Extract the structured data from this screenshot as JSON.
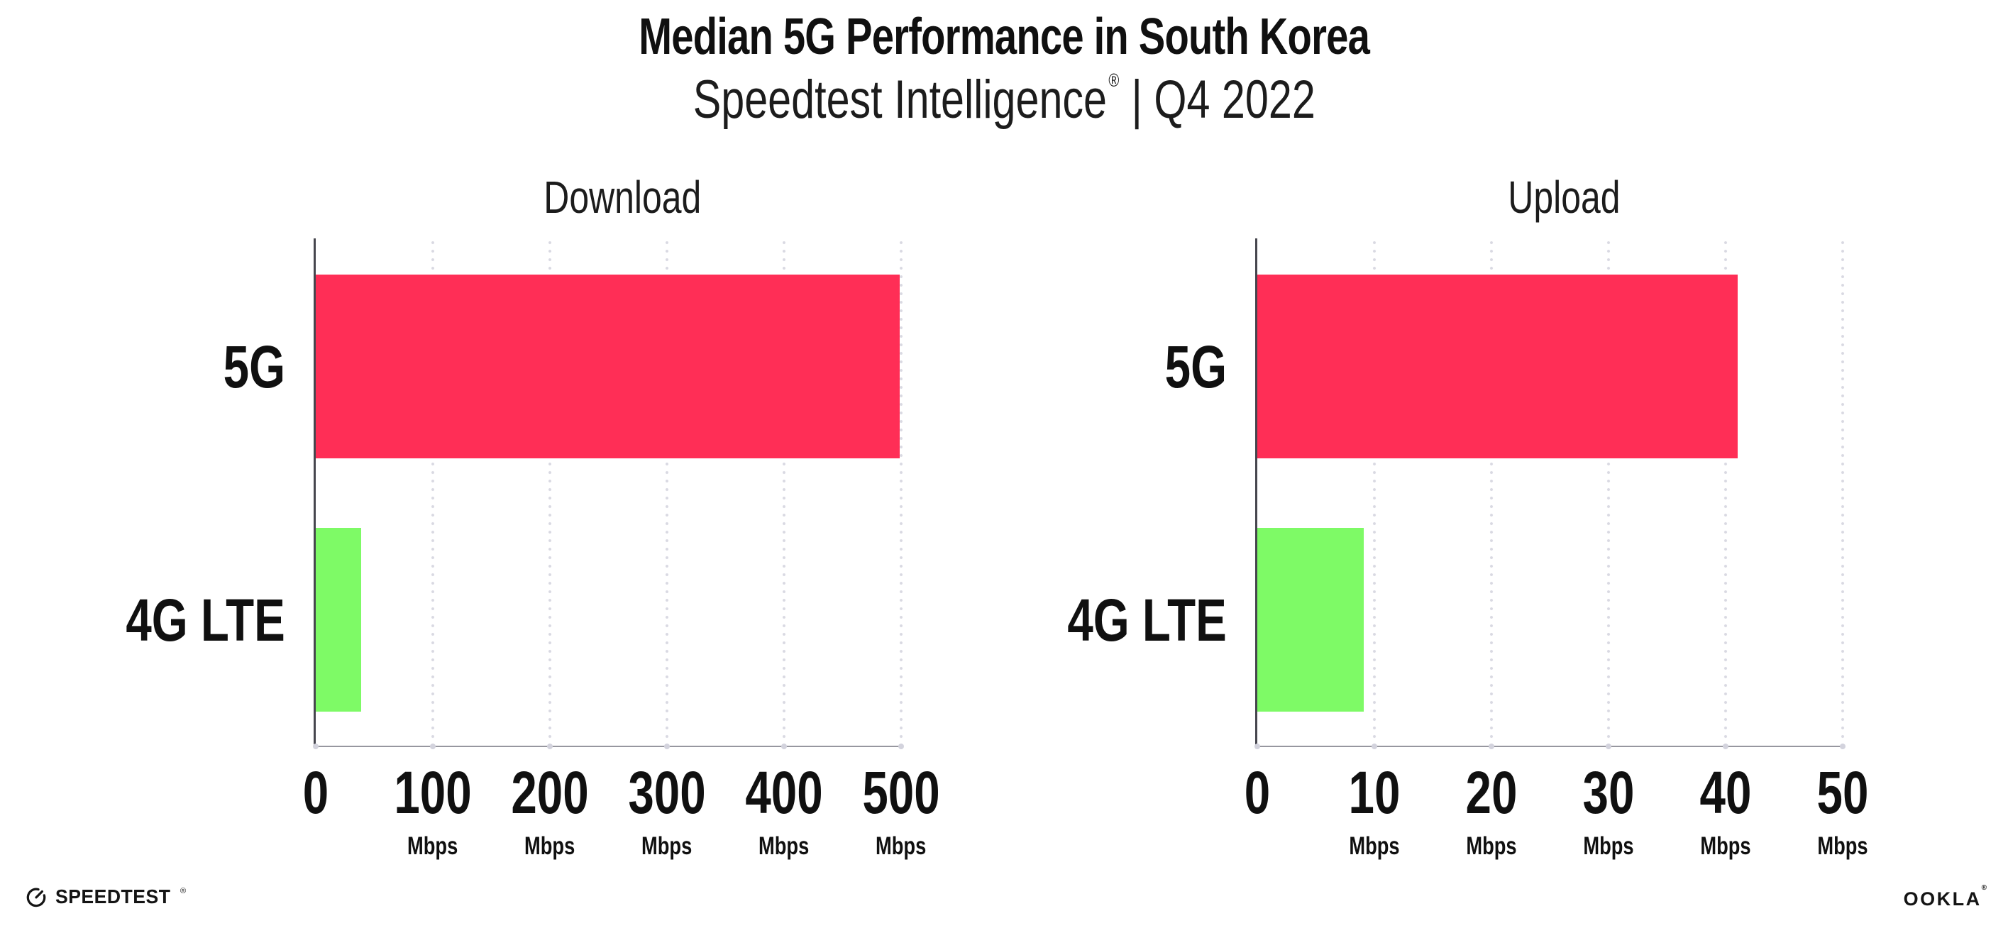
{
  "header": {
    "title": "Median 5G Performance in South Korea",
    "subtitle_brand": "Speedtest Intelligence",
    "subtitle_reg": "®",
    "subtitle_rest": "| Q4 2022"
  },
  "chart_data": [
    {
      "type": "bar",
      "orientation": "horizontal",
      "title": "Download",
      "unit": "Mbps",
      "categories": [
        "5G",
        "4G LTE"
      ],
      "values": [
        499,
        39
      ],
      "xlim": [
        0,
        500
      ],
      "grid": "dotted vertical gridlines every 100 Mbps",
      "legend": "none",
      "bar_colors": [
        "#FF2E56",
        "#7EFA66"
      ],
      "ticks": [
        {
          "value": 0,
          "label": "0",
          "unit": ""
        },
        {
          "value": 100,
          "label": "100",
          "unit": "Mbps"
        },
        {
          "value": 200,
          "label": "200",
          "unit": "Mbps"
        },
        {
          "value": 300,
          "label": "300",
          "unit": "Mbps"
        },
        {
          "value": 400,
          "label": "400",
          "unit": "Mbps"
        },
        {
          "value": 500,
          "label": "500",
          "unit": "Mbps"
        }
      ]
    },
    {
      "type": "bar",
      "orientation": "horizontal",
      "title": "Upload",
      "unit": "Mbps",
      "categories": [
        "5G",
        "4G LTE"
      ],
      "values": [
        41,
        9.1
      ],
      "xlim": [
        0,
        50
      ],
      "grid": "dotted vertical gridlines every 10 Mbps",
      "legend": "none",
      "bar_colors": [
        "#FF2E56",
        "#7EFA66"
      ],
      "ticks": [
        {
          "value": 0,
          "label": "0",
          "unit": ""
        },
        {
          "value": 10,
          "label": "10",
          "unit": "Mbps"
        },
        {
          "value": 20,
          "label": "20",
          "unit": "Mbps"
        },
        {
          "value": 30,
          "label": "30",
          "unit": "Mbps"
        },
        {
          "value": 40,
          "label": "40",
          "unit": "Mbps"
        },
        {
          "value": 50,
          "label": "50",
          "unit": "Mbps"
        }
      ]
    }
  ],
  "footer": {
    "speedtest_label": "SPEEDTEST",
    "speedtest_mark": "®",
    "ookla_label": "OOKLA",
    "ookla_mark": "®"
  },
  "colors": {
    "bar_5g": "#FF2E56",
    "bar_4g_lte": "#7EFA66",
    "text": "#141414",
    "grid_dot": "#D9D9E2",
    "x_axis_line": "#97979F",
    "y_axis_line": "#46464E",
    "axis_tick_dot": "#D3D3DD",
    "background": "#FFFFFF"
  }
}
